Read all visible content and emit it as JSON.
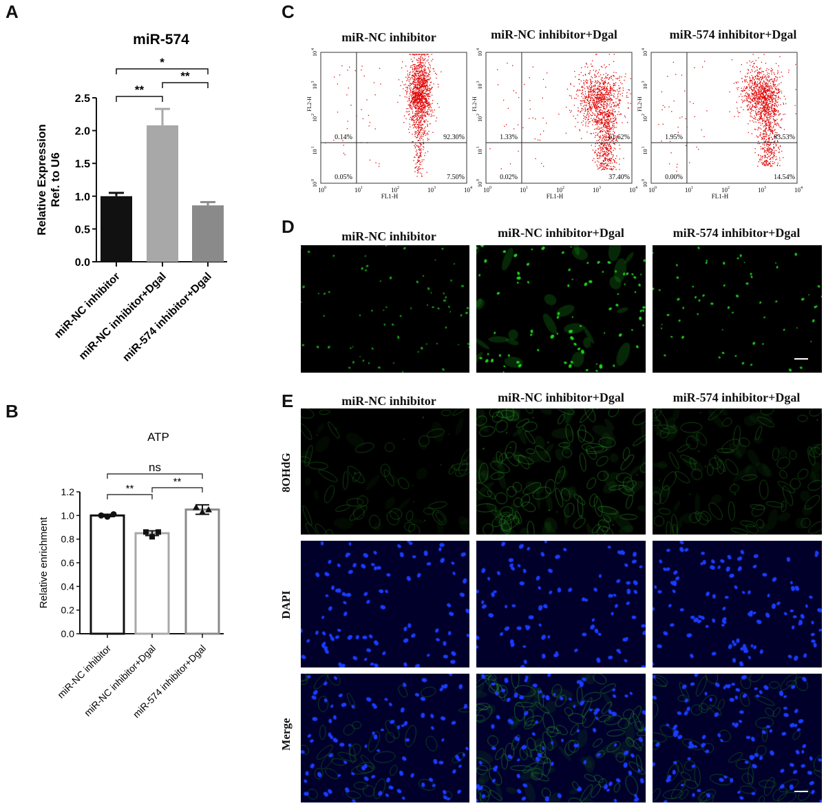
{
  "panels": {
    "A": {
      "letter": "A",
      "chart_data": {
        "type": "bar",
        "title": "miR-574",
        "ylabel_line1": "Relative Expression",
        "ylabel_line2": "Ref. to U6",
        "categories": [
          "miR-NC inhibitor",
          "miR-NC inhibitor+Dgal",
          "miR-574 inhibitor+Dgal"
        ],
        "values": [
          1.0,
          2.08,
          0.86
        ],
        "errors": [
          0.05,
          0.25,
          0.05
        ],
        "ylim": [
          0,
          2.5
        ],
        "yticks": [
          "0.0",
          "0.5",
          "1.0",
          "1.5",
          "2.0",
          "2.5"
        ],
        "colors": [
          "#111111",
          "#a8a8a8",
          "#8a8a8a"
        ],
        "significance": [
          {
            "from": 0,
            "to": 2,
            "label": "*"
          },
          {
            "from": 0,
            "to": 1,
            "label": "**"
          },
          {
            "from": 1,
            "to": 2,
            "label": "**"
          }
        ]
      }
    },
    "B": {
      "letter": "B",
      "chart_data": {
        "type": "bar",
        "title": "ATP",
        "ylabel": "Relative enrichment",
        "categories": [
          "miR-NC inhibitor",
          "miR-NC inhibitor+Dgal",
          "miR-574 inhibitor+Dgal"
        ],
        "values": [
          1.0,
          0.85,
          1.05
        ],
        "errors": [
          0.01,
          0.02,
          0.04
        ],
        "points": [
          [
            1.0,
            0.99,
            1.01
          ],
          [
            0.86,
            0.82,
            0.86
          ],
          [
            1.07,
            1.03,
            1.05
          ]
        ],
        "ylim": [
          0,
          1.2
        ],
        "yticks": [
          "0.0",
          "0.2",
          "0.4",
          "0.6",
          "0.8",
          "1.0",
          "1.2"
        ],
        "colors": [
          "#111111",
          "#a8a8a8",
          "#8a8a8a"
        ],
        "significance": [
          {
            "from": 0,
            "to": 2,
            "label": "ns"
          },
          {
            "from": 0,
            "to": 1,
            "label": "**"
          },
          {
            "from": 1,
            "to": 2,
            "label": "**"
          }
        ]
      }
    },
    "C": {
      "letter": "C",
      "plots": [
        {
          "title": "miR-NC inhibitor",
          "q_ul": "0.14%",
          "q_ur": "92.30%",
          "q_ll": "0.05%",
          "q_lr": "7.50%",
          "center": [
            10,
            6.9
          ],
          "spread": [
            1.4,
            5.8
          ]
        },
        {
          "title": "miR-NC inhibitor+Dgal",
          "q_ul": "1.33%",
          "q_ur": "61.62%",
          "q_ll": "0.02%",
          "q_lr": "37.40%",
          "center": [
            24,
            5.2
          ],
          "spread": [
            2.6,
            4.4
          ]
        },
        {
          "title": "miR-574 inhibitor+Dgal",
          "q_ul": "1.95%",
          "q_ur": "83.53%",
          "q_ll": "0.00%",
          "q_lr": "14.54%",
          "center": [
            20,
            6.3
          ],
          "spread": [
            2.4,
            4.2
          ]
        }
      ],
      "xaxis_label": "FL1-H",
      "yaxis_label": "FL2-H",
      "ticks": [
        "10",
        "10",
        "10",
        "10",
        "10"
      ],
      "tick_exps": [
        "0",
        "1",
        "2",
        "3",
        "4"
      ]
    },
    "D": {
      "letter": "D",
      "titles": [
        "miR-NC inhibitor",
        "miR-NC inhibitor+Dgal",
        "miR-574 inhibitor+Dgal"
      ]
    },
    "E": {
      "letter": "E",
      "titles": [
        "miR-NC inhibitor",
        "miR-NC inhibitor+Dgal",
        "miR-574 inhibitor+Dgal"
      ],
      "rows": [
        "8OHdG",
        "DAPI",
        "Merge"
      ]
    }
  },
  "colors": {
    "dot_plot": "#e00000",
    "fitc": "#22dd22",
    "dapi": "#1a3cff"
  }
}
